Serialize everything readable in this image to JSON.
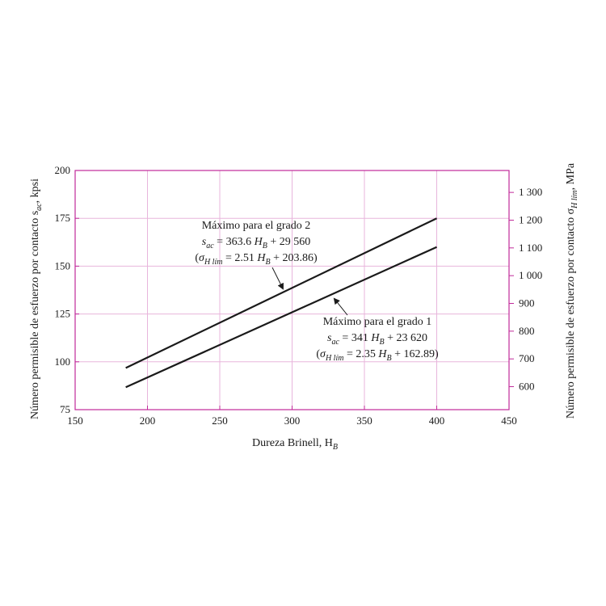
{
  "chart_data": {
    "type": "line",
    "xlabel": "Dureza Brinell, H",
    "xlabel_sub": "B",
    "ylabel_left": "Número permisible de esfuerzo por contacto s",
    "ylabel_left_sub": "ac",
    "ylabel_left_unit": ", kpsi",
    "ylabel_right": "Número permisible de esfuerzo por contacto σ",
    "ylabel_right_sub": "H lím",
    "ylabel_right_unit": ", MPa",
    "xlim": [
      150,
      450
    ],
    "ylim_left": [
      75,
      200
    ],
    "ylim_right_mpa": [
      517.1,
      1379
    ],
    "x_ticks": [
      150,
      200,
      250,
      300,
      350,
      400,
      450
    ],
    "y_ticks_left": [
      75,
      100,
      125,
      150,
      175,
      200
    ],
    "y_ticks_right": [
      600,
      700,
      800,
      900,
      1000,
      1100,
      1200,
      1300
    ],
    "y_ticks_right_labels": [
      "600",
      "700",
      "800",
      "900",
      "1 000",
      "1 100",
      "1 200",
      "1 300"
    ],
    "grid": true,
    "series": [
      {
        "name": "Máximo para el grado 2",
        "x": [
          185,
          400
        ],
        "y": [
          96.8,
          175.0
        ]
      },
      {
        "name": "Máximo para el grado 1",
        "x": [
          185,
          400
        ],
        "y": [
          86.7,
          160.0
        ]
      }
    ],
    "colors": {
      "axes": "#c02a9a",
      "grid": "#e8b5dc",
      "line": "#1a1a1a"
    },
    "annotations": [
      {
        "series": 0,
        "line1": "Máximo para el grado 2",
        "l2_var": "s",
        "l2_sub": "ac",
        "l2_mid": " = 363.6 ",
        "l2_var2": "H",
        "l2_sub2": "B",
        "l2_end": " + 29 560",
        "l3_open": "(",
        "l3_var": "σ",
        "l3_sub": "H lím",
        "l3_mid": " = 2.51 ",
        "l3_var2": "H",
        "l3_sub2": "B",
        "l3_end": " + 203.86)"
      },
      {
        "series": 1,
        "line1": "Máximo para el grado 1",
        "l2_var": "s",
        "l2_sub": "ac",
        "l2_mid": " = 341 ",
        "l2_var2": "H",
        "l2_sub2": "B",
        "l2_end": " + 23 620",
        "l3_open": "(",
        "l3_var": "σ",
        "l3_sub": "H lím",
        "l3_mid": " = 2.35 ",
        "l3_var2": "H",
        "l3_sub2": "B",
        "l3_end": " + 162.89)"
      }
    ]
  }
}
